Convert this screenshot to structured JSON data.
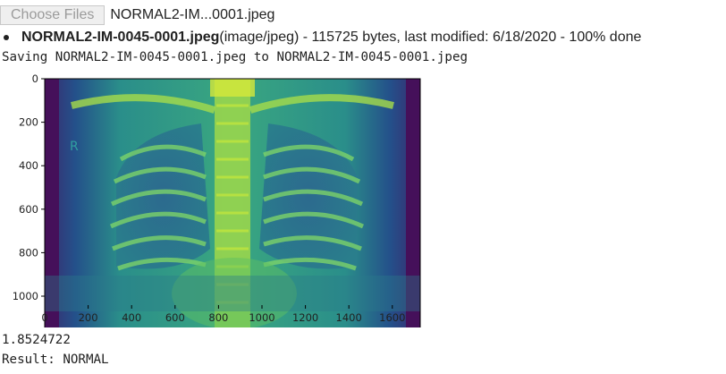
{
  "upload": {
    "button_label": "Choose Files",
    "selected_file": "NORMAL2-IM...0001.jpeg"
  },
  "file_info": {
    "name": "NORMAL2-IM-0045-0001.jpeg",
    "details": "(image/jpeg) - 115725 bytes, last modified: 6/18/2020 - 100% done"
  },
  "saving_text": "Saving NORMAL2-IM-0045-0001.jpeg to NORMAL2-IM-0045-0001.jpeg",
  "plot": {
    "x_ticks": [
      "0",
      "200",
      "400",
      "600",
      "800",
      "1000",
      "1200",
      "1400",
      "1600"
    ],
    "y_ticks": [
      "0",
      "200",
      "400",
      "600",
      "800",
      "1000"
    ],
    "image_marker": "R",
    "colors": {
      "dark": "#440154",
      "mid": "#21918c",
      "light": "#fde725"
    }
  },
  "outputs": {
    "score": "1.8524722",
    "result": "Result: NORMAL"
  }
}
